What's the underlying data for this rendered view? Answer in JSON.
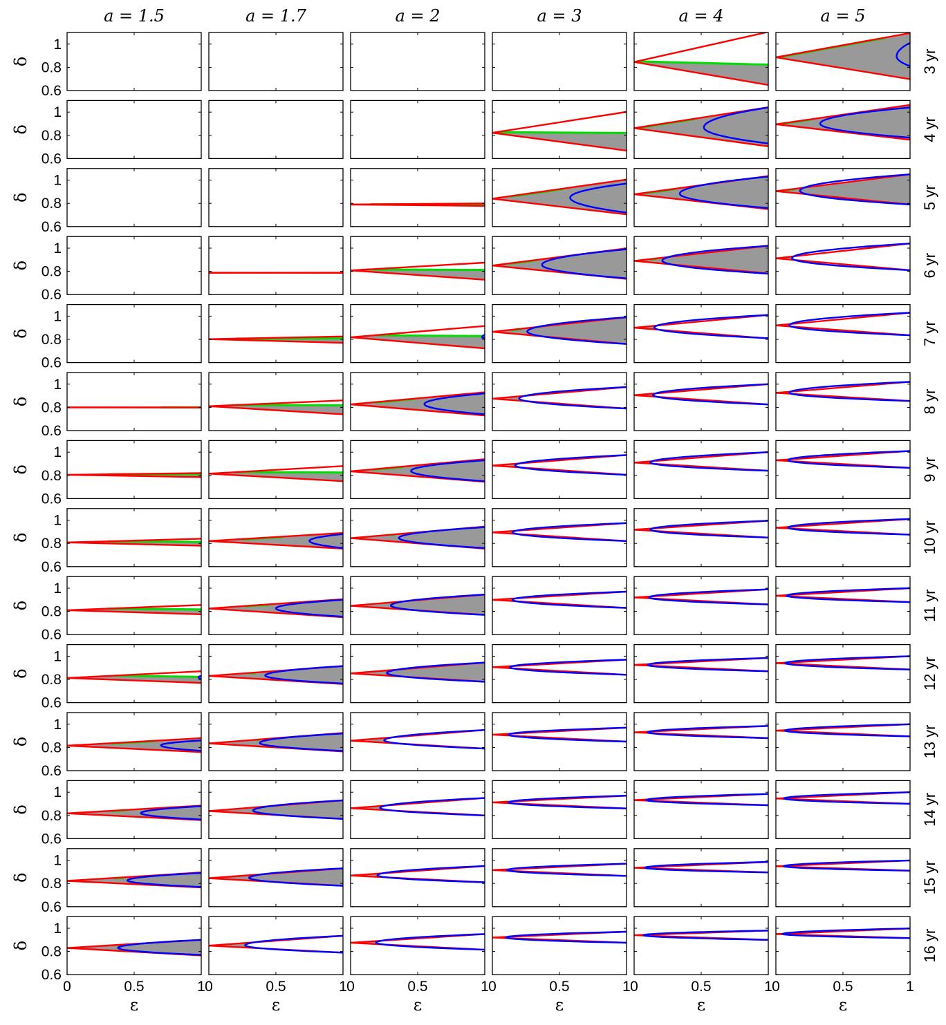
{
  "chart_data": {
    "type": "line",
    "layout": "small-multiples grid",
    "columns": [
      "a = 1.5",
      "a = 1.7",
      "a = 2",
      "a = 3",
      "a = 4",
      "a = 5"
    ],
    "column_a_values": [
      1.5,
      1.7,
      2,
      3,
      4,
      5
    ],
    "rows": [
      "3 yr",
      "4 yr",
      "5 yr",
      "6 yr",
      "7 yr",
      "8 yr",
      "9 yr",
      "10 yr",
      "11 yr",
      "12 yr",
      "13 yr",
      "14 yr",
      "15 yr",
      "16 yr"
    ],
    "xlabel": "ε",
    "ylabel": "δ",
    "xlim": [
      0,
      1
    ],
    "ylim": [
      0.6,
      1.1
    ],
    "xticks": [
      0,
      0.5,
      1
    ],
    "xtick_labels": [
      "0",
      "0.5",
      "1"
    ],
    "yticks": [
      0.6,
      0.8,
      1
    ],
    "ytick_labels": [
      "0.6",
      "0.8",
      "1"
    ],
    "grid": false,
    "legend": "none",
    "colors": {
      "boundary": "#ff0000",
      "blue_curve": "#0000ff",
      "green_segment": "#00dd00",
      "shaded_region": "#999999"
    },
    "panels": [
      [
        null,
        null,
        null,
        null,
        {
          "d0": 0.846,
          "up": 1.105,
          "low": 0.648,
          "g": [
            0.02,
            1.0
          ],
          "gEnd": 0.823
        },
        {
          "d0": 0.886,
          "up": 1.095,
          "low": 0.698,
          "g": [
            0.02,
            0.82
          ],
          "b": 0.9,
          "bTop": 1.01,
          "bBot": 0.81
        }
      ],
      [
        null,
        null,
        null,
        {
          "d0": 0.822,
          "up": 1.002,
          "low": 0.668,
          "g": [
            0.03,
            1.0
          ],
          "gEnd": 0.82
        },
        {
          "d0": 0.862,
          "up": 1.042,
          "low": 0.705,
          "g": [
            0.05,
            0.45
          ],
          "b": 0.52,
          "bTop": 1.04,
          "bBot": 0.73
        },
        {
          "d0": 0.895,
          "up": 1.062,
          "low": 0.762,
          "g": [
            0.05,
            0.26
          ],
          "b": 0.33,
          "bTop": 1.04,
          "bBot": 0.78
        }
      ],
      [
        null,
        null,
        {
          "d0": 0.79,
          "up": 0.799,
          "low": 0.778,
          "g": [
            0.15,
            1.0
          ],
          "gEnd": 0.795
        },
        {
          "d0": 0.84,
          "up": 1.005,
          "low": 0.705,
          "g": [
            0.13,
            0.53
          ],
          "b": 0.58,
          "bTop": 0.97,
          "bBot": 0.72
        },
        {
          "d0": 0.878,
          "up": 1.035,
          "low": 0.75,
          "g": [
            0.08,
            0.3
          ],
          "b": 0.34,
          "bTop": 1.03,
          "bBot": 0.76
        },
        {
          "d0": 0.905,
          "up": 1.05,
          "low": 0.79,
          "g": [
            0.08,
            0.14
          ],
          "b": 0.18,
          "bTop": 1.05,
          "bBot": 0.79
        }
      ],
      [
        null,
        {
          "d0": 0.788,
          "up": 0.789,
          "low": 0.787
        },
        {
          "d0": 0.808,
          "up": 0.875,
          "low": 0.728,
          "g": [
            0.12,
            1.0
          ],
          "gEnd": 0.812
        },
        {
          "d0": 0.85,
          "up": 0.998,
          "low": 0.735,
          "g": [
            0.12,
            0.33
          ],
          "b": 0.37,
          "bTop": 0.99,
          "bBot": 0.74
        },
        {
          "d0": 0.89,
          "up": 1.02,
          "low": 0.782,
          "g": [
            0.12,
            0.17
          ],
          "b": 0.21,
          "bTop": 1.02,
          "bBot": 0.78
        },
        {
          "d0": 0.912,
          "up": 1.04,
          "low": 0.81,
          "b": 0.12,
          "bTop": 1.04,
          "bBot": 0.81
        }
      ],
      [
        null,
        {
          "d0": 0.802,
          "up": 0.825,
          "low": 0.77,
          "g": [
            0.2,
            1.0
          ],
          "gEnd": 0.808
        },
        {
          "d0": 0.818,
          "up": 0.915,
          "low": 0.722,
          "g": [
            0.18,
            1.0
          ],
          "gEnd": 0.828,
          "b": 0.98,
          "bTop": 0.84,
          "bBot": 0.81
        },
        {
          "d0": 0.865,
          "up": 0.99,
          "low": 0.76,
          "g": [
            0.14,
            0.22
          ],
          "b": 0.26,
          "bTop": 0.99,
          "bBot": 0.76
        },
        {
          "d0": 0.9,
          "up": 1.01,
          "low": 0.808,
          "b": 0.15,
          "bTop": 1.01,
          "bBot": 0.81
        },
        {
          "d0": 0.92,
          "up": 1.03,
          "low": 0.835,
          "b": 0.1,
          "bTop": 1.03,
          "bBot": 0.835
        }
      ],
      [
        {
          "d0": 0.8,
          "up": 0.8,
          "low": 0.799,
          "g": [
            0.7,
            1.0
          ],
          "gEnd": 0.8
        },
        {
          "d0": 0.81,
          "up": 0.86,
          "low": 0.74,
          "g": [
            0.2,
            1.0
          ],
          "gEnd": 0.818
        },
        {
          "d0": 0.826,
          "up": 0.93,
          "low": 0.73,
          "g": [
            0.18,
            0.48
          ],
          "b": 0.55,
          "bTop": 0.92,
          "bBot": 0.74
        },
        {
          "d0": 0.875,
          "up": 0.975,
          "low": 0.79,
          "b": 0.2,
          "bTop": 0.975,
          "bBot": 0.79
        },
        {
          "d0": 0.905,
          "up": 1.0,
          "low": 0.825,
          "b": 0.14,
          "bTop": 1.0,
          "bBot": 0.825
        },
        {
          "d0": 0.925,
          "up": 1.02,
          "low": 0.855,
          "b": 0.1,
          "bTop": 1.02,
          "bBot": 0.855
        }
      ],
      [
        {
          "d0": 0.805,
          "up": 0.82,
          "low": 0.785,
          "g": [
            0.3,
            1.0
          ],
          "gEnd": 0.81
        },
        {
          "d0": 0.815,
          "up": 0.88,
          "low": 0.75,
          "g": [
            0.2,
            1.0
          ],
          "gEnd": 0.825
        },
        {
          "d0": 0.835,
          "up": 0.94,
          "low": 0.745,
          "g": [
            0.16,
            0.4
          ],
          "b": 0.45,
          "bTop": 0.93,
          "bBot": 0.75
        },
        {
          "d0": 0.885,
          "up": 0.975,
          "low": 0.805,
          "b": 0.17,
          "bTop": 0.975,
          "bBot": 0.805
        },
        {
          "d0": 0.91,
          "up": 1.0,
          "low": 0.84,
          "b": 0.12,
          "bTop": 1.0,
          "bBot": 0.84
        },
        {
          "d0": 0.93,
          "up": 1.01,
          "low": 0.865,
          "b": 0.09,
          "bTop": 1.01,
          "bBot": 0.865
        }
      ],
      [
        {
          "d0": 0.808,
          "up": 0.84,
          "low": 0.78,
          "g": [
            0.3,
            1.0
          ],
          "gEnd": 0.813
        },
        {
          "d0": 0.82,
          "up": 0.89,
          "low": 0.755,
          "g": [
            0.25,
            0.55
          ],
          "b": 0.75,
          "bTop": 0.88,
          "bBot": 0.76
        },
        {
          "d0": 0.845,
          "up": 0.945,
          "low": 0.755,
          "g": [
            0.3,
            0.33
          ],
          "b": 0.36,
          "bTop": 0.94,
          "bBot": 0.76
        },
        {
          "d0": 0.895,
          "up": 0.975,
          "low": 0.82,
          "b": 0.15,
          "bTop": 0.975,
          "bBot": 0.82
        },
        {
          "d0": 0.918,
          "up": 0.995,
          "low": 0.85,
          "b": 0.12,
          "bTop": 0.995,
          "bBot": 0.85
        },
        {
          "d0": 0.935,
          "up": 1.01,
          "low": 0.875,
          "b": 0.09,
          "bTop": 1.01,
          "bBot": 0.875
        }
      ],
      [
        {
          "d0": 0.81,
          "up": 0.855,
          "low": 0.775,
          "g": [
            0.3,
            1.0
          ],
          "gEnd": 0.817
        },
        {
          "d0": 0.825,
          "up": 0.905,
          "low": 0.75,
          "g": [
            0.27,
            0.45
          ],
          "b": 0.5,
          "bTop": 0.9,
          "bBot": 0.755
        },
        {
          "d0": 0.848,
          "up": 0.945,
          "low": 0.77,
          "g": [
            0.3,
            0.35
          ],
          "b": 0.3,
          "bTop": 0.945,
          "bBot": 0.77
        },
        {
          "d0": 0.9,
          "up": 0.97,
          "low": 0.83,
          "b": 0.15,
          "bTop": 0.97,
          "bBot": 0.83
        },
        {
          "d0": 0.92,
          "up": 0.99,
          "low": 0.86,
          "b": 0.11,
          "bTop": 0.99,
          "bBot": 0.86
        },
        {
          "d0": 0.935,
          "up": 1.0,
          "low": 0.88,
          "b": 0.08,
          "bTop": 1.0,
          "bBot": 0.88
        }
      ],
      [
        {
          "d0": 0.812,
          "up": 0.87,
          "low": 0.77,
          "g": [
            0.35,
            1.0
          ],
          "gEnd": 0.822,
          "b": 0.98,
          "bTop": 0.83,
          "bBot": 0.8
        },
        {
          "d0": 0.83,
          "up": 0.915,
          "low": 0.76,
          "g": [
            0.3,
            0.35
          ],
          "b": 0.42,
          "bTop": 0.915,
          "bBot": 0.765
        },
        {
          "d0": 0.852,
          "up": 0.945,
          "low": 0.78,
          "g": [
            0.4,
            0.4
          ],
          "b": 0.27,
          "bTop": 0.945,
          "bBot": 0.78
        },
        {
          "d0": 0.905,
          "up": 0.97,
          "low": 0.84,
          "b": 0.13,
          "bTop": 0.97,
          "bBot": 0.84
        },
        {
          "d0": 0.925,
          "up": 0.985,
          "low": 0.87,
          "b": 0.1,
          "bTop": 0.985,
          "bBot": 0.87
        },
        {
          "d0": 0.94,
          "up": 1.0,
          "low": 0.885,
          "b": 0.07,
          "bTop": 1.0,
          "bBot": 0.885
        }
      ],
      [
        {
          "d0": 0.815,
          "up": 0.88,
          "low": 0.76,
          "g": [
            0.33,
            0.65
          ],
          "b": 0.7,
          "bTop": 0.86,
          "bBot": 0.77
        },
        {
          "d0": 0.835,
          "up": 0.925,
          "low": 0.765,
          "g": [
            0.35,
            0.38
          ],
          "b": 0.38,
          "bTop": 0.92,
          "bBot": 0.77
        },
        {
          "d0": 0.858,
          "up": 0.95,
          "low": 0.79,
          "b": 0.25,
          "bTop": 0.95,
          "bBot": 0.79
        },
        {
          "d0": 0.91,
          "up": 0.97,
          "low": 0.85,
          "b": 0.12,
          "bTop": 0.97,
          "bBot": 0.85
        },
        {
          "d0": 0.93,
          "up": 0.985,
          "low": 0.88,
          "b": 0.1,
          "bTop": 0.985,
          "bBot": 0.88
        },
        {
          "d0": 0.945,
          "up": 1.0,
          "low": 0.895,
          "b": 0.07,
          "bTop": 1.0,
          "bBot": 0.895
        }
      ],
      [
        {
          "d0": 0.818,
          "up": 0.885,
          "low": 0.76,
          "g": [
            0.33,
            0.45
          ],
          "b": 0.55,
          "bTop": 0.88,
          "bBot": 0.765
        },
        {
          "d0": 0.838,
          "up": 0.93,
          "low": 0.77,
          "g": [
            0.4,
            0.42
          ],
          "b": 0.33,
          "bTop": 0.93,
          "bBot": 0.77
        },
        {
          "d0": 0.862,
          "up": 0.95,
          "low": 0.8,
          "b": 0.22,
          "bTop": 0.95,
          "bBot": 0.8
        },
        {
          "d0": 0.912,
          "up": 0.97,
          "low": 0.86,
          "b": 0.12,
          "bTop": 0.97,
          "bBot": 0.86
        },
        {
          "d0": 0.932,
          "up": 0.985,
          "low": 0.888,
          "b": 0.09,
          "bTop": 0.985,
          "bBot": 0.888
        },
        {
          "d0": 0.946,
          "up": 1.0,
          "low": 0.9,
          "b": 0.06,
          "bTop": 1.0,
          "bBot": 0.9
        }
      ],
      [
        {
          "d0": 0.822,
          "up": 0.895,
          "low": 0.765,
          "g": [
            0.35,
            0.42
          ],
          "b": 0.45,
          "bTop": 0.89,
          "bBot": 0.77
        },
        {
          "d0": 0.845,
          "up": 0.93,
          "low": 0.78,
          "g": [
            0.42,
            0.42
          ],
          "b": 0.3,
          "bTop": 0.93,
          "bBot": 0.78
        },
        {
          "d0": 0.868,
          "up": 0.95,
          "low": 0.81,
          "b": 0.2,
          "bTop": 0.95,
          "bBot": 0.81
        },
        {
          "d0": 0.915,
          "up": 0.97,
          "low": 0.865,
          "b": 0.11,
          "bTop": 0.97,
          "bBot": 0.865
        },
        {
          "d0": 0.935,
          "up": 0.985,
          "low": 0.895,
          "b": 0.08,
          "bTop": 0.985,
          "bBot": 0.895
        },
        {
          "d0": 0.948,
          "up": 0.998,
          "low": 0.91,
          "b": 0.06,
          "bTop": 0.998,
          "bBot": 0.91
        }
      ],
      [
        {
          "d0": 0.83,
          "up": 0.9,
          "low": 0.765,
          "g": [
            0.38,
            0.4
          ],
          "b": 0.38,
          "bTop": 0.9,
          "bBot": 0.77
        },
        {
          "d0": 0.85,
          "up": 0.935,
          "low": 0.79,
          "b": 0.27,
          "bTop": 0.935,
          "bBot": 0.79
        },
        {
          "d0": 0.875,
          "up": 0.95,
          "low": 0.815,
          "b": 0.19,
          "bTop": 0.95,
          "bBot": 0.815
        },
        {
          "d0": 0.92,
          "up": 0.97,
          "low": 0.875,
          "b": 0.1,
          "bTop": 0.97,
          "bBot": 0.875
        },
        {
          "d0": 0.94,
          "up": 0.98,
          "low": 0.9,
          "b": 0.07,
          "bTop": 0.98,
          "bBot": 0.9
        },
        {
          "d0": 0.95,
          "up": 0.998,
          "low": 0.915,
          "b": 0.05,
          "bTop": 0.998,
          "bBot": 0.915
        }
      ]
    ]
  }
}
